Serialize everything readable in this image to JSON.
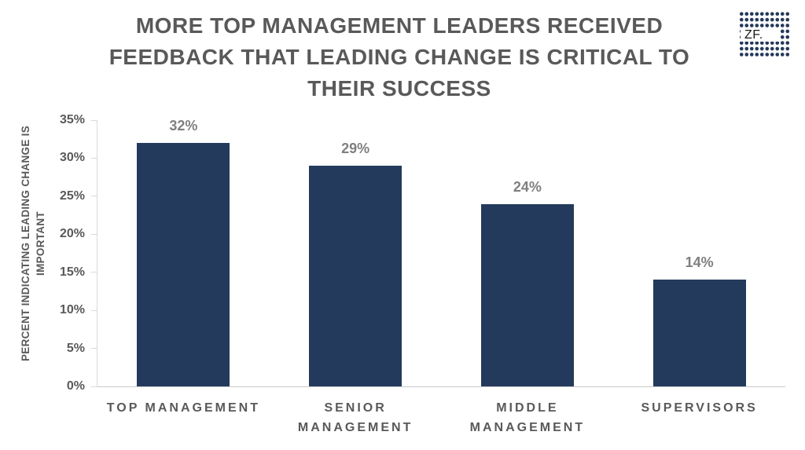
{
  "logo": {
    "text": "ZF."
  },
  "chart_data": {
    "type": "bar",
    "title": "MORE TOP MANAGEMENT LEADERS RECEIVED FEEDBACK THAT LEADING CHANGE IS CRITICAL TO THEIR SUCCESS",
    "categories": [
      "TOP MANAGEMENT",
      "SENIOR MANAGEMENT",
      "MIDDLE MANAGEMENT",
      "SUPERVISORS"
    ],
    "values": [
      32,
      29,
      24,
      14
    ],
    "data_labels": [
      "32%",
      "29%",
      "24%",
      "14%"
    ],
    "xlabel": "",
    "ylabel": "PERCENT INDICATING LEADING CHANGE IS IMPORTANT",
    "ylabel_lines": [
      "PERCENT INDICATING LEADING CHANGE IS",
      "IMPORTANT"
    ],
    "ylim": [
      0,
      35
    ],
    "ytick_step": 5,
    "ytick_labels": [
      "0%",
      "5%",
      "10%",
      "15%",
      "20%",
      "25%",
      "30%",
      "35%"
    ],
    "grid": false,
    "legend": false,
    "bar_color": "#243A5C",
    "data_label_color": "#7F7F7F",
    "axis_text_color": "#595959",
    "title_color": "#595959"
  }
}
